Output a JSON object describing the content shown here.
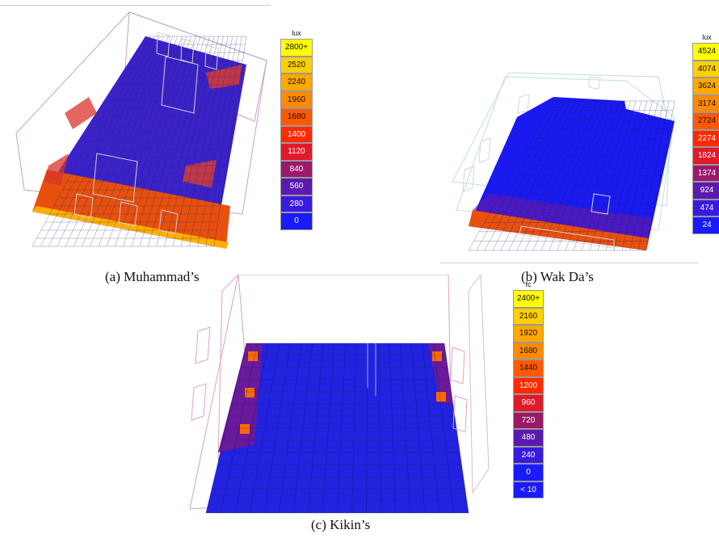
{
  "panels": [
    {
      "id": "a",
      "caption": "(a)  Muhammad’s",
      "legend_unit": "lux",
      "legend_values": [
        "2800+",
        "2520",
        "2240",
        "1960",
        "1680",
        "1400",
        "1120",
        "840",
        "560",
        "280",
        "0"
      ],
      "legend_colors": [
        "#ffff00",
        "#ffd000",
        "#ffa800",
        "#ff8a00",
        "#ff5a00",
        "#ff2a00",
        "#e01a2a",
        "#9a1a6a",
        "#5a1ab0",
        "#3a1ae0",
        "#1a1aff"
      ]
    },
    {
      "id": "b",
      "caption": "(b)  Wak Da’s",
      "legend_unit": "lux",
      "legend_values": [
        "4524",
        "4074",
        "3624",
        "3174",
        "2724",
        "2274",
        "1824",
        "1374",
        "924",
        "474",
        "24"
      ],
      "legend_colors": [
        "#ffff00",
        "#ffd000",
        "#ffa800",
        "#ff8a00",
        "#ff5a00",
        "#ff2a00",
        "#e01a2a",
        "#9a1a6a",
        "#5a1ab0",
        "#3a1ae0",
        "#1a1aff"
      ]
    },
    {
      "id": "c",
      "caption": "(c)  Kikin’s",
      "legend_unit": "fc",
      "legend_values": [
        "2400+",
        "2160",
        "1920",
        "1680",
        "1440",
        "1200",
        "960",
        "720",
        "480",
        "240",
        "0",
        "< 10"
      ],
      "legend_colors": [
        "#ffff00",
        "#ffd000",
        "#ffa800",
        "#ff8a00",
        "#ff5a00",
        "#ff2a00",
        "#e01a2a",
        "#9a1a6a",
        "#5a1ab0",
        "#3a1ae0",
        "#1a1aff",
        "#1a1aff"
      ]
    }
  ]
}
